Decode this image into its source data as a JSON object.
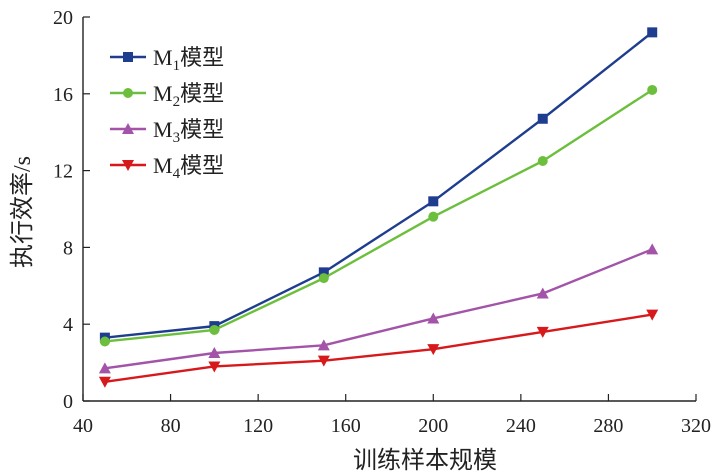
{
  "chart_data": {
    "type": "line",
    "xlabel": "训练样本规模",
    "ylabel": "执行效率/s",
    "xlim": [
      40,
      320
    ],
    "ylim": [
      0,
      20
    ],
    "xticks": [
      40,
      80,
      120,
      160,
      200,
      240,
      280,
      320
    ],
    "yticks": [
      0,
      4,
      8,
      12,
      16,
      20
    ],
    "grid": false,
    "legend": "top-left",
    "x": [
      50,
      100,
      150,
      200,
      250,
      300
    ],
    "series": [
      {
        "name": "M1模型",
        "label_main": "M",
        "label_sub": "1",
        "label_suffix": "模型",
        "color": "#1f3d8f",
        "marker": "square",
        "values": [
          3.3,
          3.9,
          6.7,
          10.4,
          14.7,
          19.2
        ]
      },
      {
        "name": "M2模型",
        "label_main": "M",
        "label_sub": "2",
        "label_suffix": "模型",
        "color": "#6cbf3c",
        "marker": "circle",
        "values": [
          3.1,
          3.7,
          6.4,
          9.6,
          12.5,
          16.2
        ]
      },
      {
        "name": "M3模型",
        "label_main": "M",
        "label_sub": "3",
        "label_suffix": "模型",
        "color": "#a353a8",
        "marker": "triangle-up",
        "values": [
          1.7,
          2.5,
          2.9,
          4.3,
          5.6,
          7.9
        ]
      },
      {
        "name": "M4模型",
        "label_main": "M",
        "label_sub": "4",
        "label_suffix": "模型",
        "color": "#d7191c",
        "marker": "triangle-down",
        "values": [
          1.0,
          1.8,
          2.1,
          2.7,
          3.6,
          4.5
        ]
      }
    ]
  }
}
